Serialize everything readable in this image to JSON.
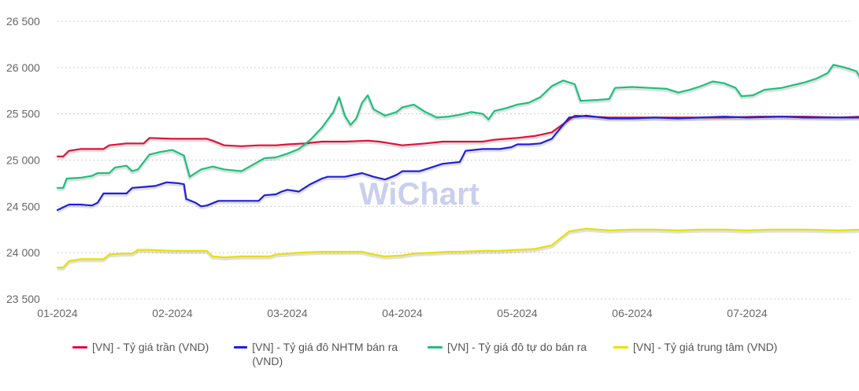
{
  "chart_data": {
    "type": "line",
    "ylim": [
      23500,
      26500
    ],
    "y_ticks": [
      23500,
      24000,
      24500,
      25000,
      25500,
      26000,
      26500
    ],
    "y_tick_labels": [
      "23 500",
      "24 000",
      "24 500",
      "25 000",
      "25 500",
      "26 000",
      "26 500"
    ],
    "x_ticks": [
      0,
      1,
      2,
      3,
      4,
      5,
      6
    ],
    "x_tick_labels": [
      "01-2024",
      "02-2024",
      "03-2024",
      "04-2024",
      "05-2024",
      "06-2024",
      "07-2024"
    ],
    "xlim": [
      0,
      7.35
    ],
    "grid": true,
    "legend_position": "bottom",
    "watermark": "WiChart",
    "series": [
      {
        "name": "[VN] - Tỷ giá trần (VND)",
        "color": "#dc143c",
        "points": [
          [
            0,
            25040
          ],
          [
            0.05,
            25040
          ],
          [
            0.1,
            25100
          ],
          [
            0.2,
            25120
          ],
          [
            0.3,
            25120
          ],
          [
            0.4,
            25120
          ],
          [
            0.45,
            25160
          ],
          [
            0.6,
            25180
          ],
          [
            0.75,
            25180
          ],
          [
            0.8,
            25240
          ],
          [
            1.0,
            25230
          ],
          [
            1.2,
            25230
          ],
          [
            1.3,
            25230
          ],
          [
            1.35,
            25210
          ],
          [
            1.45,
            25160
          ],
          [
            1.6,
            25150
          ],
          [
            1.75,
            25160
          ],
          [
            1.9,
            25160
          ],
          [
            2.0,
            25170
          ],
          [
            2.15,
            25180
          ],
          [
            2.3,
            25200
          ],
          [
            2.5,
            25200
          ],
          [
            2.7,
            25210
          ],
          [
            2.8,
            25200
          ],
          [
            2.9,
            25180
          ],
          [
            3.0,
            25160
          ],
          [
            3.2,
            25180
          ],
          [
            3.35,
            25200
          ],
          [
            3.5,
            25200
          ],
          [
            3.7,
            25200
          ],
          [
            3.8,
            25220
          ],
          [
            4.0,
            25240
          ],
          [
            4.15,
            25260
          ],
          [
            4.3,
            25300
          ],
          [
            4.5,
            25480
          ],
          [
            4.8,
            25460
          ],
          [
            5.0,
            25460
          ],
          [
            5.4,
            25460
          ],
          [
            5.8,
            25460
          ],
          [
            6.1,
            25470
          ],
          [
            6.5,
            25470
          ],
          [
            6.8,
            25460
          ],
          [
            7.0,
            25470
          ],
          [
            7.1,
            25480
          ],
          [
            7.2,
            25460
          ],
          [
            7.35,
            25460
          ]
        ]
      },
      {
        "name": "[VN] - Tỷ giá đô NHTM bán ra (VND)",
        "color": "#2020d8",
        "points": [
          [
            0,
            24460
          ],
          [
            0.1,
            24520
          ],
          [
            0.2,
            24520
          ],
          [
            0.3,
            24510
          ],
          [
            0.35,
            24540
          ],
          [
            0.4,
            24640
          ],
          [
            0.5,
            24640
          ],
          [
            0.6,
            24640
          ],
          [
            0.65,
            24700
          ],
          [
            0.75,
            24710
          ],
          [
            0.85,
            24720
          ],
          [
            0.95,
            24760
          ],
          [
            1.05,
            24750
          ],
          [
            1.1,
            24740
          ],
          [
            1.12,
            24580
          ],
          [
            1.2,
            24540
          ],
          [
            1.25,
            24500
          ],
          [
            1.3,
            24510
          ],
          [
            1.4,
            24560
          ],
          [
            1.55,
            24560
          ],
          [
            1.75,
            24560
          ],
          [
            1.8,
            24620
          ],
          [
            1.9,
            24630
          ],
          [
            1.95,
            24660
          ],
          [
            2.0,
            24680
          ],
          [
            2.1,
            24660
          ],
          [
            2.2,
            24740
          ],
          [
            2.3,
            24800
          ],
          [
            2.35,
            24820
          ],
          [
            2.45,
            24820
          ],
          [
            2.5,
            24820
          ],
          [
            2.65,
            24860
          ],
          [
            2.75,
            24820
          ],
          [
            2.85,
            24790
          ],
          [
            2.95,
            24840
          ],
          [
            3.0,
            24880
          ],
          [
            3.15,
            24880
          ],
          [
            3.25,
            24920
          ],
          [
            3.35,
            24960
          ],
          [
            3.5,
            24980
          ],
          [
            3.55,
            25100
          ],
          [
            3.7,
            25120
          ],
          [
            3.85,
            25120
          ],
          [
            3.95,
            25140
          ],
          [
            4.0,
            25170
          ],
          [
            4.1,
            25170
          ],
          [
            4.2,
            25180
          ],
          [
            4.3,
            25230
          ],
          [
            4.45,
            25460
          ],
          [
            4.6,
            25480
          ],
          [
            4.8,
            25450
          ],
          [
            5.0,
            25450
          ],
          [
            5.2,
            25460
          ],
          [
            5.4,
            25450
          ],
          [
            5.6,
            25460
          ],
          [
            5.8,
            25470
          ],
          [
            6.0,
            25460
          ],
          [
            6.3,
            25470
          ],
          [
            6.5,
            25460
          ],
          [
            6.8,
            25460
          ],
          [
            7.0,
            25460
          ],
          [
            7.2,
            25470
          ],
          [
            7.35,
            25460
          ]
        ]
      },
      {
        "name": "[VN] - Tỷ giá đô tự do bán ra",
        "color": "#1fbf7c",
        "points": [
          [
            0,
            24700
          ],
          [
            0.05,
            24700
          ],
          [
            0.08,
            24800
          ],
          [
            0.2,
            24810
          ],
          [
            0.3,
            24830
          ],
          [
            0.35,
            24860
          ],
          [
            0.45,
            24860
          ],
          [
            0.5,
            24920
          ],
          [
            0.6,
            24940
          ],
          [
            0.65,
            24880
          ],
          [
            0.7,
            24900
          ],
          [
            0.8,
            25060
          ],
          [
            0.9,
            25090
          ],
          [
            1.0,
            25110
          ],
          [
            1.05,
            25080
          ],
          [
            1.1,
            25050
          ],
          [
            1.15,
            24820
          ],
          [
            1.25,
            24900
          ],
          [
            1.35,
            24930
          ],
          [
            1.45,
            24900
          ],
          [
            1.6,
            24880
          ],
          [
            1.7,
            24950
          ],
          [
            1.8,
            25020
          ],
          [
            1.9,
            25030
          ],
          [
            2.0,
            25070
          ],
          [
            2.1,
            25120
          ],
          [
            2.2,
            25220
          ],
          [
            2.3,
            25350
          ],
          [
            2.4,
            25520
          ],
          [
            2.45,
            25680
          ],
          [
            2.5,
            25480
          ],
          [
            2.55,
            25380
          ],
          [
            2.6,
            25450
          ],
          [
            2.65,
            25620
          ],
          [
            2.7,
            25700
          ],
          [
            2.75,
            25550
          ],
          [
            2.85,
            25480
          ],
          [
            2.95,
            25520
          ],
          [
            3.0,
            25570
          ],
          [
            3.1,
            25600
          ],
          [
            3.2,
            25520
          ],
          [
            3.3,
            25460
          ],
          [
            3.4,
            25470
          ],
          [
            3.5,
            25490
          ],
          [
            3.6,
            25520
          ],
          [
            3.7,
            25500
          ],
          [
            3.75,
            25440
          ],
          [
            3.8,
            25530
          ],
          [
            3.9,
            25560
          ],
          [
            4.0,
            25600
          ],
          [
            4.1,
            25620
          ],
          [
            4.2,
            25680
          ],
          [
            4.3,
            25800
          ],
          [
            4.4,
            25860
          ],
          [
            4.5,
            25820
          ],
          [
            4.55,
            25640
          ],
          [
            4.7,
            25650
          ],
          [
            4.8,
            25660
          ],
          [
            4.85,
            25780
          ],
          [
            5.0,
            25790
          ],
          [
            5.15,
            25780
          ],
          [
            5.3,
            25770
          ],
          [
            5.4,
            25730
          ],
          [
            5.5,
            25760
          ],
          [
            5.6,
            25800
          ],
          [
            5.7,
            25850
          ],
          [
            5.8,
            25830
          ],
          [
            5.9,
            25780
          ],
          [
            5.95,
            25690
          ],
          [
            6.05,
            25700
          ],
          [
            6.15,
            25760
          ],
          [
            6.3,
            25780
          ],
          [
            6.5,
            25840
          ],
          [
            6.6,
            25880
          ],
          [
            6.7,
            25940
          ],
          [
            6.75,
            26030
          ],
          [
            6.85,
            26000
          ],
          [
            6.95,
            25960
          ],
          [
            7.0,
            25860
          ],
          [
            7.1,
            25830
          ],
          [
            7.15,
            25860
          ],
          [
            7.2,
            25800
          ],
          [
            7.25,
            25700
          ],
          [
            7.3,
            25760
          ],
          [
            7.35,
            25720
          ]
        ]
      },
      {
        "name": "[VN] - Tỷ giá trung tâm (VND)",
        "color": "#e8e000",
        "points": [
          [
            0,
            23840
          ],
          [
            0.05,
            23840
          ],
          [
            0.1,
            23910
          ],
          [
            0.2,
            23930
          ],
          [
            0.3,
            23930
          ],
          [
            0.4,
            23930
          ],
          [
            0.45,
            23980
          ],
          [
            0.55,
            23990
          ],
          [
            0.65,
            23990
          ],
          [
            0.7,
            24030
          ],
          [
            0.8,
            24030
          ],
          [
            1.0,
            24020
          ],
          [
            1.2,
            24020
          ],
          [
            1.3,
            24020
          ],
          [
            1.35,
            23960
          ],
          [
            1.45,
            23950
          ],
          [
            1.6,
            23960
          ],
          [
            1.75,
            23960
          ],
          [
            1.85,
            23960
          ],
          [
            1.9,
            23980
          ],
          [
            2.0,
            23990
          ],
          [
            2.1,
            24000
          ],
          [
            2.3,
            24010
          ],
          [
            2.5,
            24010
          ],
          [
            2.65,
            24010
          ],
          [
            2.75,
            23980
          ],
          [
            2.85,
            23960
          ],
          [
            3.0,
            23970
          ],
          [
            3.1,
            23990
          ],
          [
            3.25,
            24000
          ],
          [
            3.4,
            24010
          ],
          [
            3.5,
            24010
          ],
          [
            3.7,
            24020
          ],
          [
            3.85,
            24020
          ],
          [
            4.0,
            24030
          ],
          [
            4.15,
            24040
          ],
          [
            4.3,
            24080
          ],
          [
            4.45,
            24230
          ],
          [
            4.6,
            24260
          ],
          [
            4.8,
            24240
          ],
          [
            5.0,
            24250
          ],
          [
            5.2,
            24250
          ],
          [
            5.4,
            24240
          ],
          [
            5.6,
            24250
          ],
          [
            5.8,
            24250
          ],
          [
            6.0,
            24240
          ],
          [
            6.2,
            24250
          ],
          [
            6.5,
            24250
          ],
          [
            6.8,
            24240
          ],
          [
            7.0,
            24250
          ],
          [
            7.2,
            24250
          ],
          [
            7.35,
            24250
          ]
        ]
      }
    ]
  }
}
